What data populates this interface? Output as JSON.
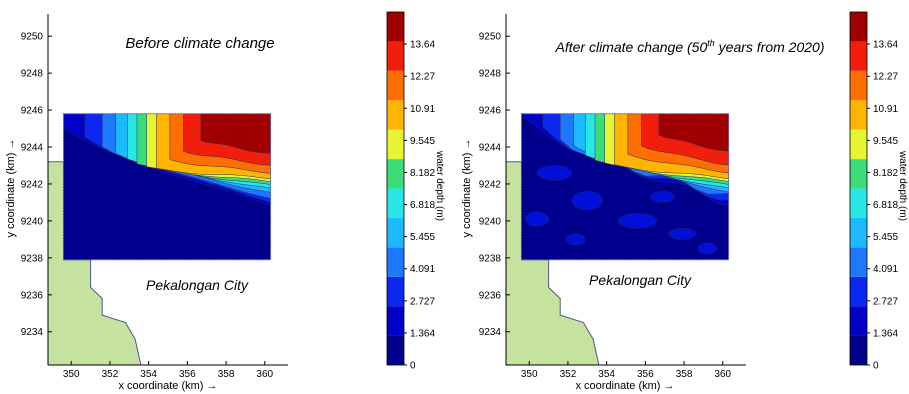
{
  "chart_data": [
    {
      "type": "heatmap",
      "title": "Before climate change",
      "xlabel": "x coordinate (km) →",
      "ylabel": "y coordinate (km) →",
      "xlim": [
        348.8,
        361.2
      ],
      "ylim": [
        9232.2,
        9251.2
      ],
      "xticks": [
        350,
        352,
        354,
        356,
        358,
        360
      ],
      "yticks": [
        9234,
        9236,
        9238,
        9240,
        9242,
        9244,
        9246,
        9248,
        9250
      ],
      "model_extent": {
        "x": [
          349.6,
          360.3
        ],
        "y": [
          9237.9,
          9245.8
        ]
      },
      "annotation": "Pekalongan City",
      "colorbar": {
        "label": "water depth (m)",
        "range": [
          0,
          15
        ],
        "ticks": [
          0,
          1.364,
          2.727,
          4.091,
          5.455,
          6.818,
          8.182,
          9.545,
          10.91,
          12.27,
          13.64
        ]
      }
    },
    {
      "type": "heatmap",
      "title": "After climate change (50th years from 2020)",
      "title_prefix": "After climate change (50",
      "title_superscript": "th",
      "title_suffix": " years from 2020)",
      "xlabel": "x coordinate (km) →",
      "ylabel": "y coordinate (km) →",
      "xlim": [
        348.8,
        361.2
      ],
      "ylim": [
        9232.2,
        9251.2
      ],
      "xticks": [
        350,
        352,
        354,
        356,
        358,
        360
      ],
      "yticks": [
        9234,
        9236,
        9238,
        9240,
        9242,
        9244,
        9246,
        9248,
        9250
      ],
      "model_extent": {
        "x": [
          349.6,
          360.3
        ],
        "y": [
          9237.9,
          9245.8
        ]
      },
      "annotation": "Pekalongan City",
      "colorbar": {
        "label": "water depth (m)",
        "range": [
          0,
          15
        ],
        "ticks": [
          0,
          1.364,
          2.727,
          4.091,
          5.455,
          6.818,
          8.182,
          9.545,
          10.91,
          12.27,
          13.64
        ]
      }
    }
  ],
  "colors": {
    "land": "#c6e2a0",
    "coast": "#4a5a8c",
    "depth_bands": [
      "#00008c",
      "#0000c8",
      "#0a28f0",
      "#1e78ff",
      "#1ebaff",
      "#28e6e6",
      "#3cdc78",
      "#e6f532",
      "#ffb400",
      "#ff6e00",
      "#f01e0a",
      "#a00000"
    ]
  }
}
